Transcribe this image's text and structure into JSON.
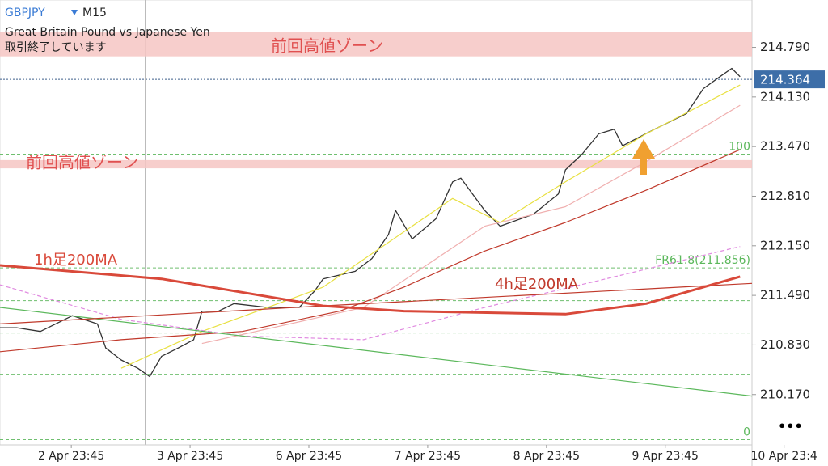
{
  "chart_data": {
    "type": "line",
    "symbol": "GBPJPY",
    "timeframe": "M15",
    "subtitle": "Great Britain Pound vs Japanese Yen",
    "status": "取引終了しています",
    "xlim": [
      -0.6,
      5.73
    ],
    "xticks": [
      {
        "value": 0,
        "label": "2 Apr 23:45"
      },
      {
        "value": 1,
        "label": "3 Apr 23:45"
      },
      {
        "value": 2,
        "label": "6 Apr 23:45"
      },
      {
        "value": 3,
        "label": "7 Apr 23:45"
      },
      {
        "value": 4,
        "label": "8 Apr 23:45"
      },
      {
        "value": 5,
        "label": "9 Apr 23:45"
      },
      {
        "value": 6,
        "label": "10 Apr 23:4"
      }
    ],
    "ylim": [
      209.5,
      215.42
    ],
    "yticks": [
      {
        "value": 214.79,
        "label": "214.790"
      },
      {
        "value": 214.13,
        "label": "214.130"
      },
      {
        "value": 213.47,
        "label": "213.470"
      },
      {
        "value": 212.81,
        "label": "212.810"
      },
      {
        "value": 212.15,
        "label": "212.150"
      },
      {
        "value": 211.49,
        "label": "211.490"
      },
      {
        "value": 210.83,
        "label": "210.830"
      },
      {
        "value": 210.17,
        "label": "210.170"
      }
    ],
    "current_price": 214.364,
    "zones": [
      {
        "label": "前回高値ゾーン",
        "range": [
          214.67,
          214.99
        ]
      },
      {
        "label": "前回高値ゾーン",
        "range": [
          213.18,
          213.29
        ]
      }
    ],
    "fib_levels": [
      {
        "value": 213.37,
        "label": "100"
      },
      {
        "value": 211.856,
        "label": "FR61.8(211.856)"
      },
      {
        "value": 211.42
      },
      {
        "value": 210.99
      },
      {
        "value": 210.44
      },
      {
        "value": 209.57,
        "label": "0"
      }
    ],
    "series": [
      {
        "color": "#333333",
        "x": [
          -0.6,
          -0.46,
          -0.26,
          0.01,
          0.22,
          0.29,
          0.42,
          0.56,
          0.66,
          0.76,
          0.9,
          1.03,
          1.1,
          1.24,
          1.37,
          1.65,
          1.92,
          2.05,
          2.12,
          2.39,
          2.53,
          2.67,
          2.73,
          2.87,
          3.07,
          3.21,
          3.28,
          3.48,
          3.61,
          3.89,
          4.1,
          4.16,
          4.3,
          4.44,
          4.57,
          4.64,
          4.91,
          5.18,
          5.32,
          5.46,
          5.56,
          5.63
        ],
        "values": [
          211.06,
          211.06,
          211.01,
          211.22,
          211.11,
          210.79,
          210.63,
          210.52,
          210.41,
          210.68,
          210.79,
          210.9,
          211.28,
          211.28,
          211.38,
          211.33,
          211.33,
          211.55,
          211.71,
          211.81,
          211.98,
          212.3,
          212.62,
          212.24,
          212.51,
          213.0,
          213.05,
          212.62,
          212.41,
          212.57,
          212.84,
          213.16,
          213.37,
          213.64,
          213.7,
          213.48,
          213.7,
          213.91,
          214.24,
          214.4,
          214.51,
          214.4
        ]
      },
      {
        "color": "#e8e040",
        "x": [
          0.42,
          1.1,
          2.12,
          3.21,
          3.61,
          4.16,
          4.84,
          5.63
        ],
        "values": [
          210.52,
          211.01,
          211.6,
          212.78,
          212.46,
          213.0,
          213.64,
          214.29
        ]
      },
      {
        "color": "#f0b0b0",
        "x": [
          1.1,
          2.46,
          3.48,
          4.16,
          4.84,
          5.63
        ],
        "values": [
          210.85,
          211.33,
          212.41,
          212.67,
          213.27,
          214.02
        ]
      },
      {
        "color": "#c0392b",
        "x": [
          -0.6,
          0.42,
          1.44,
          2.26,
          2.8,
          3.48,
          4.16,
          4.84,
          5.63
        ],
        "values": [
          210.74,
          210.9,
          211.01,
          211.28,
          211.6,
          212.08,
          212.46,
          212.89,
          213.43
        ]
      },
      {
        "color": "#e08ae0",
        "dashed": true,
        "x": [
          -0.6,
          0.42,
          1.44,
          2.46,
          3.48,
          4.5,
          5.63
        ],
        "values": [
          211.63,
          211.17,
          210.95,
          210.9,
          211.33,
          211.71,
          212.14
        ]
      },
      {
        "color": "#5cb85c",
        "x": [
          -0.6,
          5.73
        ],
        "values": [
          211.33,
          210.15
        ]
      },
      {
        "name": "4h足200MA",
        "color": "#c0392b",
        "x": [
          -0.6,
          2.12,
          5.73
        ],
        "values": [
          211.11,
          211.35,
          211.65
        ]
      },
      {
        "name": "1h足200MA",
        "color": "#d9493a",
        "thick": true,
        "x": [
          -0.6,
          0.76,
          2.12,
          2.8,
          4.16,
          4.84,
          5.63
        ],
        "values": [
          211.89,
          211.71,
          211.35,
          211.28,
          211.24,
          211.38,
          211.74
        ]
      }
    ]
  }
}
